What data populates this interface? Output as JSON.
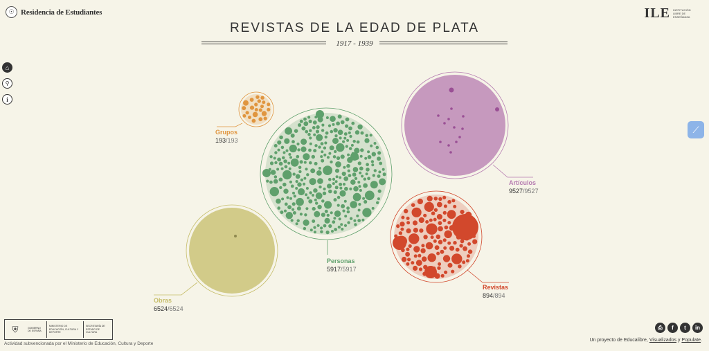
{
  "header": {
    "site_name": "Residencia de Estudiantes",
    "partner_mark": "ILE",
    "partner_text": "INSTITUCIÓN LIBRE DE ENSEÑANZA",
    "title": "REVISTAS DE LA EDAD DE PLATA",
    "subtitle": "1917 - 1939"
  },
  "nav": {
    "home_icon": "home-icon",
    "search_icon": "search-icon",
    "info_icon": "info-icon"
  },
  "categories": [
    {
      "key": "grupos",
      "label": "Grupos",
      "count": "193",
      "total": "193",
      "color": "#e0953f"
    },
    {
      "key": "personas",
      "label": "Personas",
      "count": "5917",
      "total": "5917",
      "color": "#5fa06c"
    },
    {
      "key": "articulos",
      "label": "Artículos",
      "count": "9527",
      "total": "9527",
      "color": "#b57bb0"
    },
    {
      "key": "obras",
      "label": "Obras",
      "count": "6524",
      "total": "6524",
      "color": "#c6bd6a"
    },
    {
      "key": "revistas",
      "label": "Revistas",
      "count": "894",
      "total": "894",
      "color": "#d2482c"
    }
  ],
  "footer": {
    "gob_text": "GOBIERNO DE ESPAÑA",
    "ministry_text": "MINISTERIO DE EDUCACIÓN, CULTURA Y DEPORTE",
    "secretary_text": "SECRETARÍA DE ESTADO DE CULTURA",
    "note": "Actividad subvencionada por el Ministerio de Educación, Cultura y Deporte",
    "credits_prefix": "Un proyecto de Educalibre, ",
    "credits_link1": "Visualizados",
    "credits_mid": " y ",
    "credits_link2": "Populate",
    "credits_suffix": "."
  },
  "social": [
    "print-icon",
    "facebook-icon",
    "twitter-icon",
    "linkedin-icon"
  ]
}
